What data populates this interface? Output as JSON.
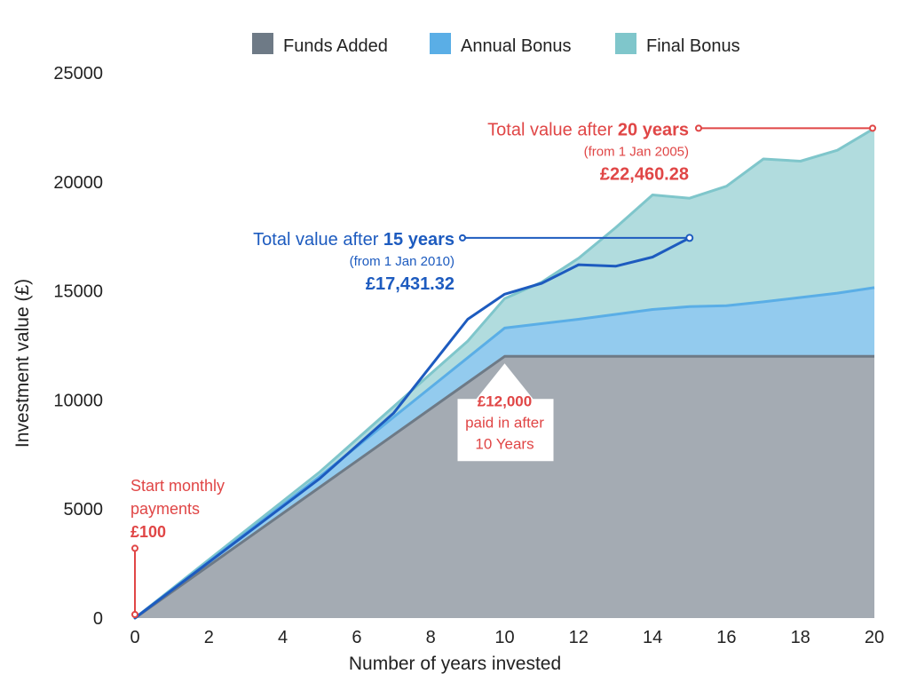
{
  "chart_data": {
    "type": "area",
    "xlabel": "Number of years invested",
    "ylabel": "Investment value (£)",
    "xlim": [
      0,
      20
    ],
    "ylim": [
      0,
      25000
    ],
    "x_ticks": [
      0,
      2,
      4,
      6,
      8,
      10,
      12,
      14,
      16,
      18,
      20
    ],
    "y_ticks": [
      0,
      5000,
      10000,
      15000,
      20000,
      25000
    ],
    "legend_position": "top",
    "stacked_series": [
      {
        "name": "Funds Added",
        "color": "#6e7a86",
        "fill": "#a4abb3",
        "points": [
          [
            0,
            0
          ],
          [
            10,
            12000
          ],
          [
            20,
            12000
          ]
        ]
      },
      {
        "name": "Annual Bonus",
        "color": "#5aaee6",
        "fill": "#93cbee",
        "points": [
          [
            0,
            0
          ],
          [
            5,
            6500
          ],
          [
            10,
            13300
          ],
          [
            12,
            13700
          ],
          [
            14,
            14150
          ],
          [
            15,
            14280
          ],
          [
            16,
            14320
          ],
          [
            17,
            14500
          ],
          [
            18,
            14700
          ],
          [
            19,
            14900
          ],
          [
            20,
            15150
          ]
        ]
      },
      {
        "name": "Final Bonus",
        "color": "#7fc6cb",
        "fill": "#b1dcde",
        "points": [
          [
            0,
            0
          ],
          [
            5,
            6700
          ],
          [
            8,
            11200
          ],
          [
            9,
            12700
          ],
          [
            10,
            14650
          ],
          [
            11,
            15400
          ],
          [
            12,
            16500
          ],
          [
            13,
            17900
          ],
          [
            14,
            19400
          ],
          [
            15,
            19250
          ],
          [
            16,
            19800
          ],
          [
            17,
            21050
          ],
          [
            18,
            20950
          ],
          [
            19,
            21450
          ],
          [
            20,
            22460.28
          ]
        ]
      }
    ],
    "lines": [
      {
        "name": "Total value after 15 years",
        "color": "#1d5bbf",
        "points": [
          [
            0,
            0
          ],
          [
            5,
            6400
          ],
          [
            7,
            9400
          ],
          [
            9,
            13700
          ],
          [
            10,
            14850
          ],
          [
            11,
            15350
          ],
          [
            12,
            16200
          ],
          [
            13,
            16130
          ],
          [
            14,
            16550
          ],
          [
            15,
            17431.32
          ]
        ]
      }
    ],
    "annotations": {
      "start": {
        "line1": "Start monthly",
        "line2": "payments",
        "amount": "£100",
        "x": 0,
        "y": 3200
      },
      "paid_in": {
        "amount": "£12,000",
        "line1": "paid in after",
        "line2": "10 Years",
        "x": 10,
        "y": 12000
      },
      "total15": {
        "prefix": "Total value after ",
        "bold": "15 years",
        "sub": "(from 1 Jan 2010)",
        "amount": "£17,431.32",
        "x": 15,
        "y": 17431.32
      },
      "total20": {
        "prefix": "Total value after ",
        "bold": "20 years",
        "sub": "(from 1 Jan 2005)",
        "amount": "£22,460.28",
        "x": 20,
        "y": 22460.28
      }
    }
  },
  "colors": {
    "accent_red": "#e04646",
    "accent_blue": "#1d5bbf"
  }
}
